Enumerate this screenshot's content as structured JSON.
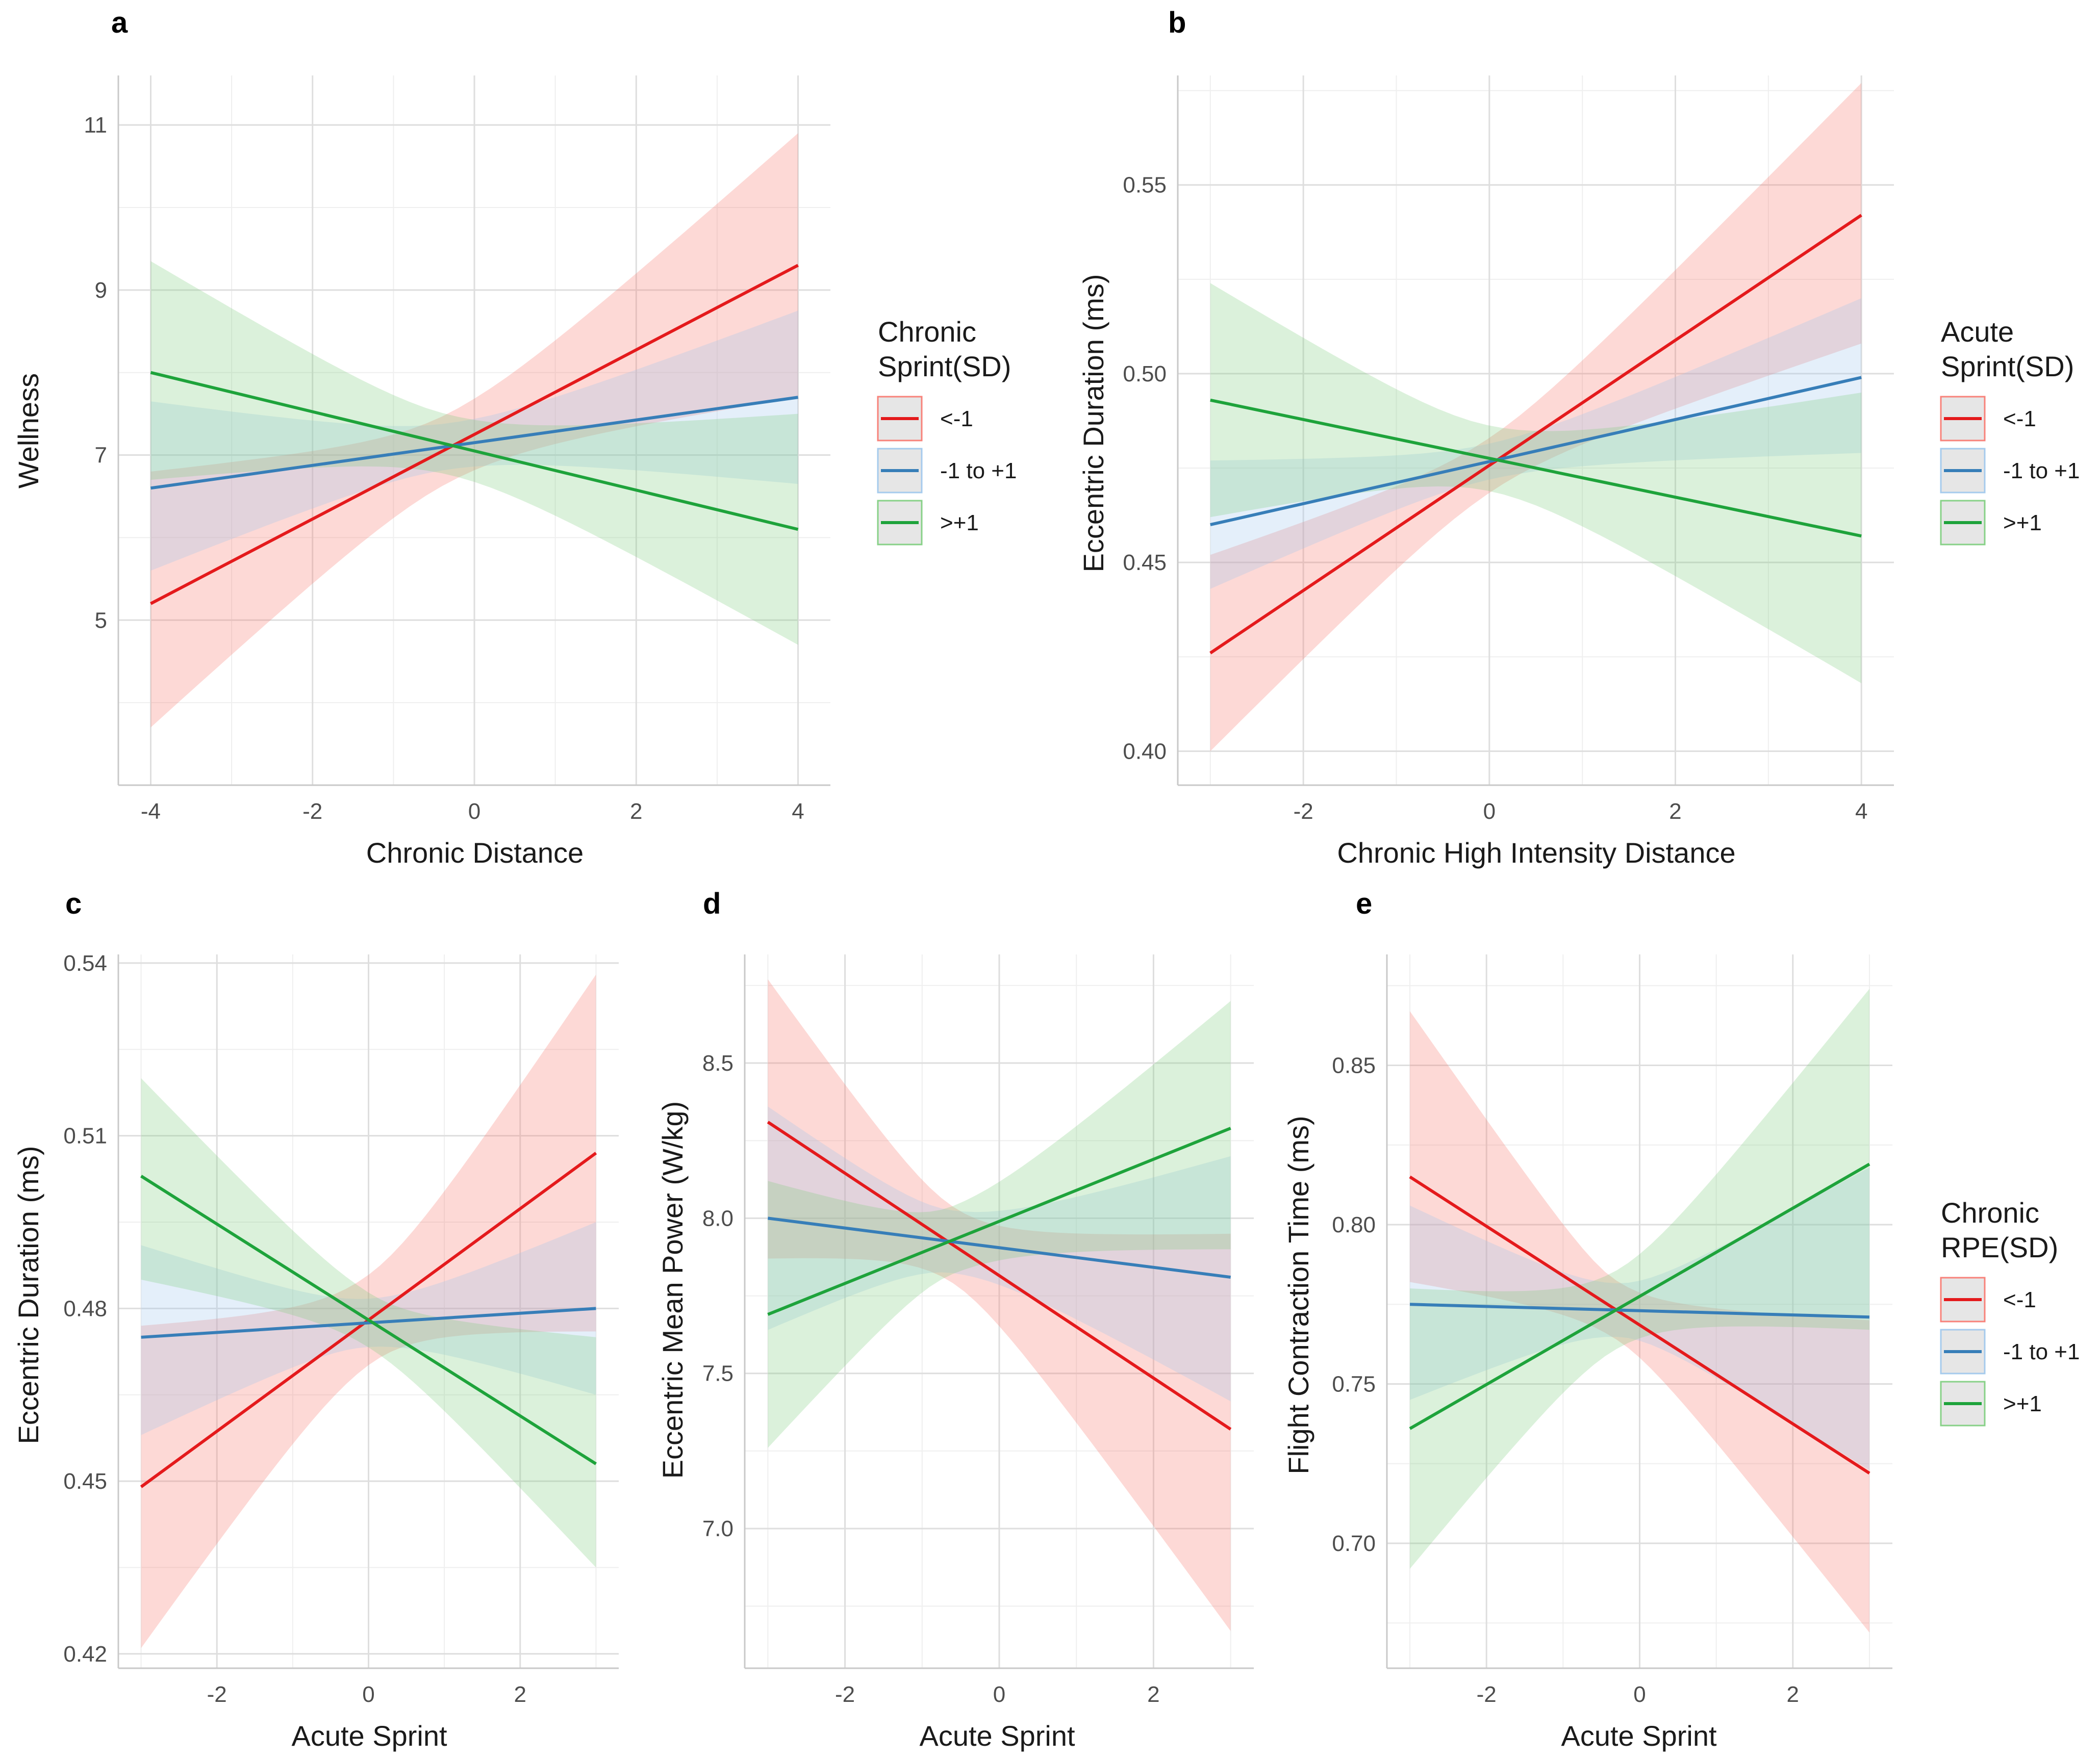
{
  "colors": {
    "low": "#e41a1c",
    "mid": "#377eb8",
    "high": "#1ea33b",
    "ribbon_low": "#f8766d",
    "ribbon_mid": "#9dc7ec",
    "ribbon_high": "#7ccd7c"
  },
  "legends": {
    "chronic_sprint": {
      "title_lines": [
        "Chronic",
        "Sprint(SD)"
      ],
      "labels": [
        "<-1",
        "-1 to +1",
        ">+1"
      ]
    },
    "acute_sprint": {
      "title_lines": [
        "Acute",
        "Sprint(SD)"
      ],
      "labels": [
        "<-1",
        "-1 to +1",
        ">+1"
      ]
    },
    "chronic_rpe": {
      "title_lines": [
        "Chronic",
        "RPE(SD)"
      ],
      "labels": [
        "<-1",
        "-1 to +1",
        ">+1"
      ]
    }
  },
  "chart_data": [
    {
      "panel": "a",
      "type": "line",
      "xlabel": "Chronic Distance",
      "ylabel": "Wellness",
      "xlim": [
        -4.4,
        4.4
      ],
      "ylim": [
        3.0,
        11.6
      ],
      "xticks": [
        -4,
        -2,
        0,
        2,
        4
      ],
      "xticklabels": [
        "-4",
        "-2",
        "0",
        "2",
        "4"
      ],
      "yticks": [
        5,
        7,
        9,
        11
      ],
      "yticklabels": [
        "5",
        "7",
        "9",
        "11"
      ],
      "x_range": [
        -4,
        4
      ],
      "legend": "chronic_sprint",
      "series": [
        {
          "name": "<-1",
          "color": "low",
          "ribbon": "ribbon_low",
          "y": [
            5.2,
            9.3
          ],
          "lower": [
            3.7,
            7.7
          ],
          "upper": [
            6.8,
            10.9
          ],
          "center": -0.3
        },
        {
          "name": "-1 to +1",
          "color": "mid",
          "ribbon": "ribbon_mid",
          "y": [
            6.6,
            7.7
          ],
          "lower": [
            5.6,
            6.65
          ],
          "upper": [
            7.65,
            8.75
          ],
          "center": -0.3
        },
        {
          "name": ">+1",
          "color": "high",
          "ribbon": "ribbon_high",
          "y": [
            8.0,
            6.1
          ],
          "lower": [
            6.7,
            4.7
          ],
          "upper": [
            9.35,
            7.5
          ],
          "center": -0.3
        }
      ]
    },
    {
      "panel": "b",
      "type": "line",
      "xlabel": "Chronic High Intensity Distance",
      "ylabel": "Eccentric Duration (ms)",
      "xlim": [
        -3.35,
        4.35
      ],
      "ylim": [
        0.391,
        0.579
      ],
      "xticks": [
        -2,
        0,
        2,
        4
      ],
      "xticklabels": [
        "-2",
        "0",
        "2",
        "4"
      ],
      "yticks": [
        0.4,
        0.45,
        0.5,
        0.55
      ],
      "yticklabels": [
        "0.40",
        "0.45",
        "0.50",
        "0.55"
      ],
      "x_range": [
        -3,
        4
      ],
      "legend": "acute_sprint",
      "series": [
        {
          "name": "<-1",
          "color": "low",
          "ribbon": "ribbon_low",
          "y": [
            0.426,
            0.542
          ],
          "lower": [
            0.4,
            0.508
          ],
          "upper": [
            0.452,
            0.577
          ],
          "center": 0.0
        },
        {
          "name": "-1 to +1",
          "color": "mid",
          "ribbon": "ribbon_mid",
          "y": [
            0.46,
            0.499
          ],
          "lower": [
            0.443,
            0.479
          ],
          "upper": [
            0.477,
            0.52
          ],
          "center": 0.0
        },
        {
          "name": ">+1",
          "color": "high",
          "ribbon": "ribbon_high",
          "y": [
            0.493,
            0.457
          ],
          "lower": [
            0.462,
            0.418
          ],
          "upper": [
            0.524,
            0.495
          ],
          "center": 0.0
        }
      ]
    },
    {
      "panel": "c",
      "type": "line",
      "xlabel": "Acute Sprint",
      "ylabel": "Eccentric Duration (ms)",
      "xlim": [
        -3.3,
        3.3
      ],
      "ylim": [
        0.4175,
        0.5415
      ],
      "xticks": [
        -2,
        0,
        2
      ],
      "xticklabels": [
        "-2",
        "0",
        "2"
      ],
      "yticks": [
        0.42,
        0.45,
        0.48,
        0.51,
        0.54
      ],
      "yticklabels": [
        "0.42",
        "0.45",
        "0.48",
        "0.51",
        "0.54"
      ],
      "x_range": [
        -3,
        3
      ],
      "legend": null,
      "series": [
        {
          "name": "<-1",
          "color": "low",
          "ribbon": "ribbon_low",
          "y": [
            0.449,
            0.507
          ],
          "lower": [
            0.421,
            0.476
          ],
          "upper": [
            0.477,
            0.538
          ],
          "center": 0.0
        },
        {
          "name": "-1 to +1",
          "color": "mid",
          "ribbon": "ribbon_mid",
          "y": [
            0.475,
            0.48
          ],
          "lower": [
            0.458,
            0.465
          ],
          "upper": [
            0.491,
            0.495
          ],
          "center": 0.0
        },
        {
          "name": ">+1",
          "color": "high",
          "ribbon": "ribbon_high",
          "y": [
            0.503,
            0.453
          ],
          "lower": [
            0.485,
            0.435
          ],
          "upper": [
            0.52,
            0.475
          ],
          "center": 0.0
        }
      ]
    },
    {
      "panel": "d",
      "type": "line",
      "xlabel": "Acute Sprint",
      "ylabel": "Eccentric Mean Power (W/kg)",
      "xlim": [
        -3.3,
        3.3
      ],
      "ylim": [
        6.55,
        8.85
      ],
      "xticks": [
        -2,
        0,
        2
      ],
      "xticklabels": [
        "-2",
        "0",
        "2"
      ],
      "yticks": [
        7.0,
        7.5,
        8.0,
        8.5
      ],
      "yticklabels": [
        "7.0",
        "7.5",
        "8.0",
        "8.5"
      ],
      "x_range": [
        -3,
        3
      ],
      "legend": null,
      "series": [
        {
          "name": "<-1",
          "color": "low",
          "ribbon": "ribbon_low",
          "y": [
            8.31,
            7.32
          ],
          "lower": [
            7.87,
            6.67
          ],
          "upper": [
            8.77,
            7.95
          ],
          "center": -0.6
        },
        {
          "name": "-1 to +1",
          "color": "mid",
          "ribbon": "ribbon_mid",
          "y": [
            8.0,
            7.81
          ],
          "lower": [
            7.64,
            7.41
          ],
          "upper": [
            8.36,
            8.2
          ],
          "center": -0.6
        },
        {
          "name": ">+1",
          "color": "high",
          "ribbon": "ribbon_high",
          "y": [
            7.69,
            8.29
          ],
          "lower": [
            7.26,
            7.9
          ],
          "upper": [
            8.12,
            8.7
          ],
          "center": -0.6
        }
      ]
    },
    {
      "panel": "e",
      "type": "line",
      "xlabel": "Acute Sprint",
      "ylabel": "Flight Contraction Time (ms)",
      "xlim": [
        -3.3,
        3.3
      ],
      "ylim": [
        0.6608,
        0.8848
      ],
      "xticks": [
        -2,
        0,
        2
      ],
      "xticklabels": [
        "-2",
        "0",
        "2"
      ],
      "yticks": [
        0.7,
        0.75,
        0.8,
        0.85
      ],
      "yticklabels": [
        "0.70",
        "0.75",
        "0.80",
        "0.85"
      ],
      "x_range": [
        -3,
        3
      ],
      "legend": "chronic_rpe",
      "series": [
        {
          "name": "<-1",
          "color": "low",
          "ribbon": "ribbon_low",
          "y": [
            0.815,
            0.722
          ],
          "lower": [
            0.782,
            0.672
          ],
          "upper": [
            0.867,
            0.77
          ],
          "center": -0.3
        },
        {
          "name": "-1 to +1",
          "color": "mid",
          "ribbon": "ribbon_mid",
          "y": [
            0.775,
            0.771
          ],
          "lower": [
            0.745,
            0.723
          ],
          "upper": [
            0.806,
            0.818
          ],
          "center": -0.3
        },
        {
          "name": ">+1",
          "color": "high",
          "ribbon": "ribbon_high",
          "y": [
            0.736,
            0.819
          ],
          "lower": [
            0.692,
            0.767
          ],
          "upper": [
            0.78,
            0.874
          ],
          "center": -0.3
        }
      ]
    }
  ]
}
